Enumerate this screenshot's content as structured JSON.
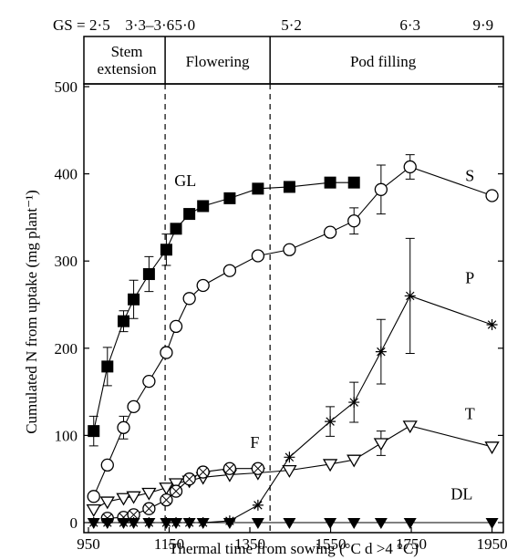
{
  "chart_data": {
    "type": "line",
    "xlabel": "Thermal time from sowing (°C d >4 °C)",
    "ylabel": "Cumulated N from uptake (mg plant⁻¹)",
    "xlim": [
      950,
      1960
    ],
    "ylim": [
      0,
      500
    ],
    "xticks": [
      950,
      1150,
      1350,
      1550,
      1750,
      1950
    ],
    "yticks": [
      0,
      100,
      200,
      300,
      400,
      500
    ],
    "gs_prefix": "GS =",
    "growth_stages": [
      {
        "label": "2·5",
        "x": 978
      },
      {
        "label": "3·3–3·6",
        "x": 1102
      },
      {
        "label": "5·0",
        "x": 1189
      },
      {
        "label": "5·2",
        "x": 1453
      },
      {
        "label": "6·3",
        "x": 1747
      },
      {
        "label": "9·9",
        "x": 1928
      }
    ],
    "phases": [
      {
        "label_lines": [
          "Stem",
          "extension"
        ],
        "from": 950,
        "to": 1140
      },
      {
        "label_lines": [
          "Flowering"
        ],
        "from": 1140,
        "to": 1400
      },
      {
        "label_lines": [
          "Pod filling"
        ],
        "from": 1400,
        "to": 1960
      }
    ],
    "phase_boundaries": [
      1140,
      1400
    ],
    "series": [
      {
        "name": "GL",
        "marker": "square-filled",
        "x": [
          963,
          997,
          1037,
          1062,
          1100,
          1143,
          1167,
          1200,
          1234,
          1300,
          1370,
          1448,
          1549,
          1608
        ],
        "y": [
          105,
          179,
          231,
          256,
          285,
          313,
          337,
          354,
          363,
          372,
          383,
          385,
          390,
          390
        ],
        "err": [
          17,
          22,
          12,
          22,
          20,
          18,
          0,
          0,
          0,
          0,
          0,
          0,
          0,
          0
        ]
      },
      {
        "name": "S",
        "marker": "circle-open",
        "x": [
          963,
          997,
          1037,
          1062,
          1100,
          1143,
          1167,
          1200,
          1234,
          1300,
          1370,
          1448,
          1549,
          1608,
          1675,
          1747,
          1950
        ],
        "y": [
          30,
          66,
          109,
          133,
          162,
          195,
          225,
          257,
          272,
          289,
          306,
          313,
          333,
          346,
          382,
          408,
          375
        ],
        "err": [
          0,
          0,
          13,
          0,
          0,
          0,
          0,
          0,
          0,
          0,
          0,
          0,
          0,
          15,
          28,
          14,
          0
        ]
      },
      {
        "name": "P",
        "marker": "asterisk",
        "x": [
          963,
          997,
          1037,
          1062,
          1100,
          1143,
          1167,
          1200,
          1234,
          1300,
          1370,
          1448,
          1549,
          1608,
          1675,
          1747,
          1950
        ],
        "y": [
          0,
          0,
          0,
          0,
          0,
          0,
          0,
          0,
          0,
          2,
          20,
          75,
          116,
          138,
          196,
          260,
          227
        ],
        "err": [
          0,
          0,
          0,
          0,
          0,
          0,
          0,
          0,
          0,
          0,
          0,
          0,
          17,
          23,
          37,
          66,
          0
        ]
      },
      {
        "name": "T",
        "marker": "triangle-down-open",
        "x": [
          963,
          997,
          1037,
          1062,
          1100,
          1143,
          1167,
          1200,
          1234,
          1300,
          1370,
          1448,
          1549,
          1608,
          1675,
          1747,
          1950
        ],
        "y": [
          15,
          24,
          28,
          30,
          34,
          40,
          45,
          48,
          52,
          55,
          57,
          60,
          67,
          72,
          91,
          111,
          87
        ],
        "err": [
          0,
          0,
          0,
          0,
          0,
          0,
          0,
          0,
          0,
          0,
          0,
          0,
          0,
          0,
          14,
          0,
          0
        ]
      },
      {
        "name": "F",
        "marker": "circle-crossed",
        "x": [
          997,
          1037,
          1062,
          1100,
          1143,
          1167,
          1200,
          1234,
          1300,
          1370
        ],
        "y": [
          5,
          6,
          9,
          16,
          26,
          36,
          50,
          58,
          62,
          62
        ],
        "err": [
          0,
          0,
          0,
          0,
          0,
          0,
          0,
          0,
          0,
          0
        ]
      },
      {
        "name": "DL",
        "marker": "triangle-down-filled",
        "x": [
          963,
          997,
          1037,
          1062,
          1100,
          1143,
          1167,
          1200,
          1234,
          1300,
          1370,
          1448,
          1549,
          1608,
          1675,
          1747,
          1950
        ],
        "y": [
          0,
          0,
          0,
          0,
          0,
          0,
          0,
          0,
          0,
          0,
          0,
          0,
          0,
          0,
          0,
          0,
          0
        ],
        "err": [
          0,
          0,
          0,
          0,
          0,
          0,
          0,
          0,
          0,
          0,
          0,
          0,
          0,
          0,
          0,
          0,
          0
        ]
      }
    ],
    "series_labels": [
      {
        "text": "GL",
        "x": 1190,
        "y": 392
      },
      {
        "text": "S",
        "x": 1895,
        "y": 398
      },
      {
        "text": "P",
        "x": 1895,
        "y": 281
      },
      {
        "text": "T",
        "x": 1895,
        "y": 125
      },
      {
        "text": "F",
        "x": 1362,
        "y": 92
      },
      {
        "text": "DL",
        "x": 1875,
        "y": 33
      }
    ],
    "grid": false,
    "legend": "none"
  }
}
